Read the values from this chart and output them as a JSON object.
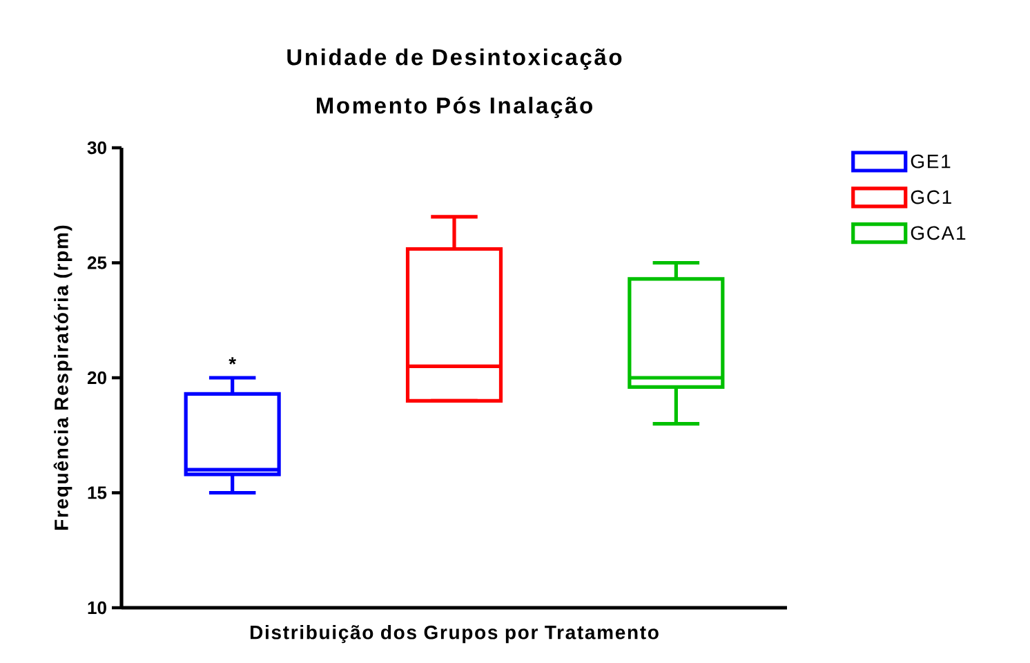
{
  "chart_data": {
    "type": "box",
    "title": "Unidade de Desintoxicação",
    "subtitle": "Momento Pós Inalação",
    "xlabel": "Distribuição dos Grupos por Tratamento",
    "ylabel": "Frequência Respiratória (rpm)",
    "categories": [
      null,
      null,
      null
    ],
    "series": [
      {
        "name": "GE1",
        "color": "#0000ff",
        "boxes": [
          {
            "low": 15,
            "q1": 15.8,
            "median": 16,
            "q3": 19.3,
            "high": 20
          },
          null,
          null
        ]
      },
      {
        "name": "GC1",
        "color": "#ff0000",
        "boxes": [
          null,
          {
            "low": 19,
            "q1": 19,
            "median": 20.5,
            "q3": 25.6,
            "high": 27
          },
          null
        ]
      },
      {
        "name": "GCA1",
        "color": "#00c000",
        "boxes": [
          null,
          null,
          {
            "low": 18,
            "q1": 19.6,
            "median": 20,
            "q3": 24.3,
            "high": 25
          }
        ]
      }
    ],
    "ylim": [
      10,
      30
    ],
    "yticks": [
      10,
      15,
      20,
      25,
      30
    ],
    "tick_labels": "y",
    "grid": false,
    "legend": "top right",
    "annotations": [
      "*"
    ]
  }
}
